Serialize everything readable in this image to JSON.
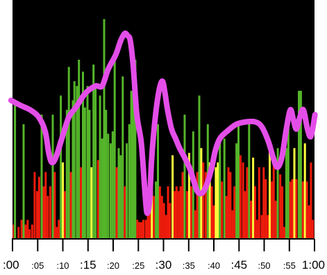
{
  "colors": {
    "background": "#000000",
    "green": "#55b52a",
    "red": "#ee1c0c",
    "yellow": "#ffff3d",
    "trend": "#e44ee8",
    "axis": "#000000"
  },
  "chart_data": {
    "type": "bar",
    "title": "",
    "xlabel": "",
    "ylabel": "",
    "x_unit": "seconds",
    "xlim": [
      0,
      60
    ],
    "ylim": [
      0,
      100
    ],
    "grid": false,
    "legend": "none",
    "x_ticks": [
      {
        "value": 0,
        "label": ":00",
        "major": true
      },
      {
        "value": 5,
        "label": ":05",
        "major": false
      },
      {
        "value": 10,
        "label": ":10",
        "major": false
      },
      {
        "value": 15,
        "label": ":15",
        "major": true
      },
      {
        "value": 20,
        "label": ":20",
        "major": false
      },
      {
        "value": 25,
        "label": ":25",
        "major": false
      },
      {
        "value": 30,
        "label": ":30",
        "major": true
      },
      {
        "value": 35,
        "label": ":35",
        "major": false
      },
      {
        "value": 40,
        "label": ":40",
        "major": false
      },
      {
        "value": 45,
        "label": ":45",
        "major": true
      },
      {
        "value": 50,
        "label": ":50",
        "major": false
      },
      {
        "value": 55,
        "label": ":55",
        "major": false
      },
      {
        "value": 60,
        "label": "1:00",
        "major": true
      }
    ],
    "bars": [
      {
        "x": 0.25,
        "y": 6,
        "c": "red"
      },
      {
        "x": 0.5,
        "y": 58,
        "c": "green"
      },
      {
        "x": 1.2,
        "y": 5,
        "c": "red"
      },
      {
        "x": 1.8,
        "y": 8,
        "c": "red"
      },
      {
        "x": 2.2,
        "y": 48,
        "c": "green"
      },
      {
        "x": 2.6,
        "y": 6,
        "c": "red"
      },
      {
        "x": 3.0,
        "y": 8,
        "c": "red"
      },
      {
        "x": 3.4,
        "y": 4,
        "c": "red"
      },
      {
        "x": 3.9,
        "y": 6,
        "c": "red"
      },
      {
        "x": 4.4,
        "y": 28,
        "c": "red"
      },
      {
        "x": 4.9,
        "y": 20,
        "c": "red"
      },
      {
        "x": 5.3,
        "y": 26,
        "c": "red"
      },
      {
        "x": 5.8,
        "y": 52,
        "c": "green"
      },
      {
        "x": 6.2,
        "y": 22,
        "c": "red"
      },
      {
        "x": 6.6,
        "y": 28,
        "c": "red"
      },
      {
        "x": 7.0,
        "y": 18,
        "c": "red"
      },
      {
        "x": 7.5,
        "y": 22,
        "c": "red"
      },
      {
        "x": 8.0,
        "y": 52,
        "c": "green"
      },
      {
        "x": 8.4,
        "y": 28,
        "c": "red"
      },
      {
        "x": 8.8,
        "y": 5,
        "c": "red"
      },
      {
        "x": 9.2,
        "y": 8,
        "c": "red"
      },
      {
        "x": 9.6,
        "y": 60,
        "c": "green"
      },
      {
        "x": 10.0,
        "y": 32,
        "c": "yellow"
      },
      {
        "x": 10.4,
        "y": 20,
        "c": "red"
      },
      {
        "x": 10.8,
        "y": 54,
        "c": "green"
      },
      {
        "x": 11.2,
        "y": 72,
        "c": "green"
      },
      {
        "x": 11.6,
        "y": 28,
        "c": "red"
      },
      {
        "x": 12.0,
        "y": 58,
        "c": "green"
      },
      {
        "x": 12.3,
        "y": 66,
        "c": "green"
      },
      {
        "x": 12.8,
        "y": 64,
        "c": "green"
      },
      {
        "x": 13.2,
        "y": 75,
        "c": "green"
      },
      {
        "x": 13.6,
        "y": 30,
        "c": "red"
      },
      {
        "x": 14.0,
        "y": 70,
        "c": "green"
      },
      {
        "x": 14.4,
        "y": 55,
        "c": "green"
      },
      {
        "x": 14.9,
        "y": 64,
        "c": "green"
      },
      {
        "x": 15.3,
        "y": 54,
        "c": "green"
      },
      {
        "x": 15.7,
        "y": 30,
        "c": "yellow"
      },
      {
        "x": 16.1,
        "y": 73,
        "c": "green"
      },
      {
        "x": 16.5,
        "y": 65,
        "c": "green"
      },
      {
        "x": 17.0,
        "y": 33,
        "c": "red"
      },
      {
        "x": 17.4,
        "y": 60,
        "c": "green"
      },
      {
        "x": 17.8,
        "y": 42,
        "c": "green"
      },
      {
        "x": 18.2,
        "y": 92,
        "c": "green"
      },
      {
        "x": 18.6,
        "y": 54,
        "c": "green"
      },
      {
        "x": 19.0,
        "y": 44,
        "c": "green"
      },
      {
        "x": 19.5,
        "y": 40,
        "c": "green"
      },
      {
        "x": 19.9,
        "y": 45,
        "c": "green"
      },
      {
        "x": 20.3,
        "y": 75,
        "c": "green"
      },
      {
        "x": 20.7,
        "y": 30,
        "c": "red"
      },
      {
        "x": 21.1,
        "y": 38,
        "c": "green"
      },
      {
        "x": 21.5,
        "y": 35,
        "c": "green"
      },
      {
        "x": 21.9,
        "y": 68,
        "c": "green"
      },
      {
        "x": 22.3,
        "y": 22,
        "c": "red"
      },
      {
        "x": 22.7,
        "y": 40,
        "c": "green"
      },
      {
        "x": 23.2,
        "y": 48,
        "c": "green"
      },
      {
        "x": 23.6,
        "y": 62,
        "c": "green"
      },
      {
        "x": 24.0,
        "y": 62,
        "c": "green"
      },
      {
        "x": 24.4,
        "y": 75,
        "c": "green"
      },
      {
        "x": 24.8,
        "y": 8,
        "c": "red"
      },
      {
        "x": 25.2,
        "y": 7,
        "c": "red"
      },
      {
        "x": 25.6,
        "y": 7,
        "c": "red"
      },
      {
        "x": 26.0,
        "y": 8,
        "c": "red"
      },
      {
        "x": 26.5,
        "y": 8,
        "c": "red"
      },
      {
        "x": 26.9,
        "y": 15,
        "c": "red"
      },
      {
        "x": 27.3,
        "y": 22,
        "c": "red"
      },
      {
        "x": 27.7,
        "y": 33,
        "c": "yellow"
      },
      {
        "x": 28.1,
        "y": 18,
        "c": "red"
      },
      {
        "x": 28.5,
        "y": 24,
        "c": "green"
      },
      {
        "x": 28.9,
        "y": 48,
        "c": "green"
      },
      {
        "x": 29.3,
        "y": 22,
        "c": "red"
      },
      {
        "x": 29.7,
        "y": 18,
        "c": "red"
      },
      {
        "x": 30.1,
        "y": 15,
        "c": "red"
      },
      {
        "x": 30.5,
        "y": 10,
        "c": "red"
      },
      {
        "x": 30.9,
        "y": 22,
        "c": "red"
      },
      {
        "x": 31.3,
        "y": 15,
        "c": "red"
      },
      {
        "x": 31.8,
        "y": 35,
        "c": "yellow"
      },
      {
        "x": 32.2,
        "y": 20,
        "c": "red"
      },
      {
        "x": 32.6,
        "y": 22,
        "c": "red"
      },
      {
        "x": 33.0,
        "y": 20,
        "c": "red"
      },
      {
        "x": 33.4,
        "y": 22,
        "c": "red"
      },
      {
        "x": 33.8,
        "y": 28,
        "c": "red"
      },
      {
        "x": 34.2,
        "y": 52,
        "c": "green"
      },
      {
        "x": 34.7,
        "y": 20,
        "c": "red"
      },
      {
        "x": 35.1,
        "y": 36,
        "c": "yellow"
      },
      {
        "x": 35.5,
        "y": 22,
        "c": "red"
      },
      {
        "x": 35.9,
        "y": 45,
        "c": "green"
      },
      {
        "x": 36.3,
        "y": 12,
        "c": "red"
      },
      {
        "x": 36.7,
        "y": 28,
        "c": "red"
      },
      {
        "x": 37.1,
        "y": 60,
        "c": "green"
      },
      {
        "x": 37.5,
        "y": 38,
        "c": "yellow"
      },
      {
        "x": 37.9,
        "y": 32,
        "c": "red"
      },
      {
        "x": 38.4,
        "y": 28,
        "c": "red"
      },
      {
        "x": 38.8,
        "y": 48,
        "c": "green"
      },
      {
        "x": 39.2,
        "y": 32,
        "c": "yellow"
      },
      {
        "x": 39.6,
        "y": 22,
        "c": "red"
      },
      {
        "x": 40.0,
        "y": 14,
        "c": "red"
      },
      {
        "x": 40.4,
        "y": 30,
        "c": "yellow"
      },
      {
        "x": 40.8,
        "y": 32,
        "c": "yellow"
      },
      {
        "x": 41.2,
        "y": 42,
        "c": "green"
      },
      {
        "x": 41.6,
        "y": 24,
        "c": "red"
      },
      {
        "x": 42.1,
        "y": 42,
        "c": "green"
      },
      {
        "x": 42.5,
        "y": 18,
        "c": "red"
      },
      {
        "x": 42.9,
        "y": 30,
        "c": "red"
      },
      {
        "x": 43.3,
        "y": 28,
        "c": "red"
      },
      {
        "x": 43.7,
        "y": 12,
        "c": "red"
      },
      {
        "x": 44.1,
        "y": 22,
        "c": "red"
      },
      {
        "x": 44.5,
        "y": 40,
        "c": "green"
      },
      {
        "x": 44.9,
        "y": 48,
        "c": "green"
      },
      {
        "x": 45.3,
        "y": 35,
        "c": "red"
      },
      {
        "x": 45.8,
        "y": 32,
        "c": "red"
      },
      {
        "x": 46.2,
        "y": 20,
        "c": "red"
      },
      {
        "x": 46.6,
        "y": 30,
        "c": "red"
      },
      {
        "x": 47.0,
        "y": 48,
        "c": "green"
      },
      {
        "x": 47.4,
        "y": 16,
        "c": "red"
      },
      {
        "x": 47.8,
        "y": 34,
        "c": "yellow"
      },
      {
        "x": 48.2,
        "y": 22,
        "c": "red"
      },
      {
        "x": 48.6,
        "y": 8,
        "c": "red"
      },
      {
        "x": 49.0,
        "y": 30,
        "c": "red"
      },
      {
        "x": 49.5,
        "y": 10,
        "c": "red"
      },
      {
        "x": 49.9,
        "y": 30,
        "c": "red"
      },
      {
        "x": 50.3,
        "y": 25,
        "c": "red"
      },
      {
        "x": 50.7,
        "y": 10,
        "c": "red"
      },
      {
        "x": 51.1,
        "y": 38,
        "c": "yellow"
      },
      {
        "x": 51.5,
        "y": 24,
        "c": "red"
      },
      {
        "x": 51.9,
        "y": 32,
        "c": "red"
      },
      {
        "x": 52.3,
        "y": 16,
        "c": "red"
      },
      {
        "x": 52.7,
        "y": 38,
        "c": "green"
      },
      {
        "x": 53.2,
        "y": 27,
        "c": "red"
      },
      {
        "x": 53.6,
        "y": 22,
        "c": "red"
      },
      {
        "x": 54.0,
        "y": 5,
        "c": "red"
      },
      {
        "x": 54.4,
        "y": 38,
        "c": "green"
      },
      {
        "x": 54.8,
        "y": 48,
        "c": "green"
      },
      {
        "x": 55.2,
        "y": 24,
        "c": "red"
      },
      {
        "x": 55.6,
        "y": 25,
        "c": "red"
      },
      {
        "x": 56.0,
        "y": 38,
        "c": "yellow"
      },
      {
        "x": 56.4,
        "y": 25,
        "c": "red"
      },
      {
        "x": 56.9,
        "y": 62,
        "c": "green"
      },
      {
        "x": 57.3,
        "y": 62,
        "c": "green"
      },
      {
        "x": 57.7,
        "y": 24,
        "c": "red"
      },
      {
        "x": 58.1,
        "y": 40,
        "c": "yellow"
      },
      {
        "x": 58.5,
        "y": 24,
        "c": "red"
      },
      {
        "x": 58.9,
        "y": 14,
        "c": "red"
      },
      {
        "x": 59.3,
        "y": 32,
        "c": "red"
      },
      {
        "x": 59.7,
        "y": 8,
        "c": "red"
      }
    ],
    "trend": {
      "x": [
        -0.3,
        1.5,
        3.5,
        5.2,
        6.5,
        7.2,
        7.8,
        8.6,
        9.8,
        11.2,
        12.6,
        14.5,
        16.5,
        17.8,
        19.0,
        20.5,
        21.5,
        22.3,
        22.9,
        23.4,
        24.0,
        24.7,
        25.6,
        26.3,
        26.7,
        27.2,
        27.6,
        28.0,
        28.6,
        29.2,
        29.8,
        30.3,
        30.8,
        31.6,
        32.4,
        33.2,
        34.2,
        35.3,
        36.5,
        37.2,
        38.0,
        38.8,
        39.6,
        40.3,
        41.2,
        42.6,
        44.5,
        46.5,
        48.2,
        49.5,
        50.8,
        51.8,
        52.6,
        53.5,
        54.4,
        55.2,
        55.8,
        56.4,
        57.1,
        57.8,
        58.6,
        59.3,
        60.1
      ],
      "y": [
        58,
        56,
        54,
        51,
        45,
        36,
        32,
        34,
        42,
        51,
        55,
        61,
        64,
        64,
        71,
        77,
        83,
        86,
        85,
        83,
        72,
        52,
        40,
        20,
        11,
        15,
        32,
        43,
        55,
        63,
        66,
        61,
        54,
        46,
        42,
        38,
        34,
        29,
        21,
        19,
        20,
        24,
        30,
        37,
        42,
        45,
        48,
        49,
        49,
        47,
        41,
        34,
        30,
        34,
        46,
        54,
        50,
        46,
        51,
        54,
        46,
        43,
        52
      ]
    }
  }
}
